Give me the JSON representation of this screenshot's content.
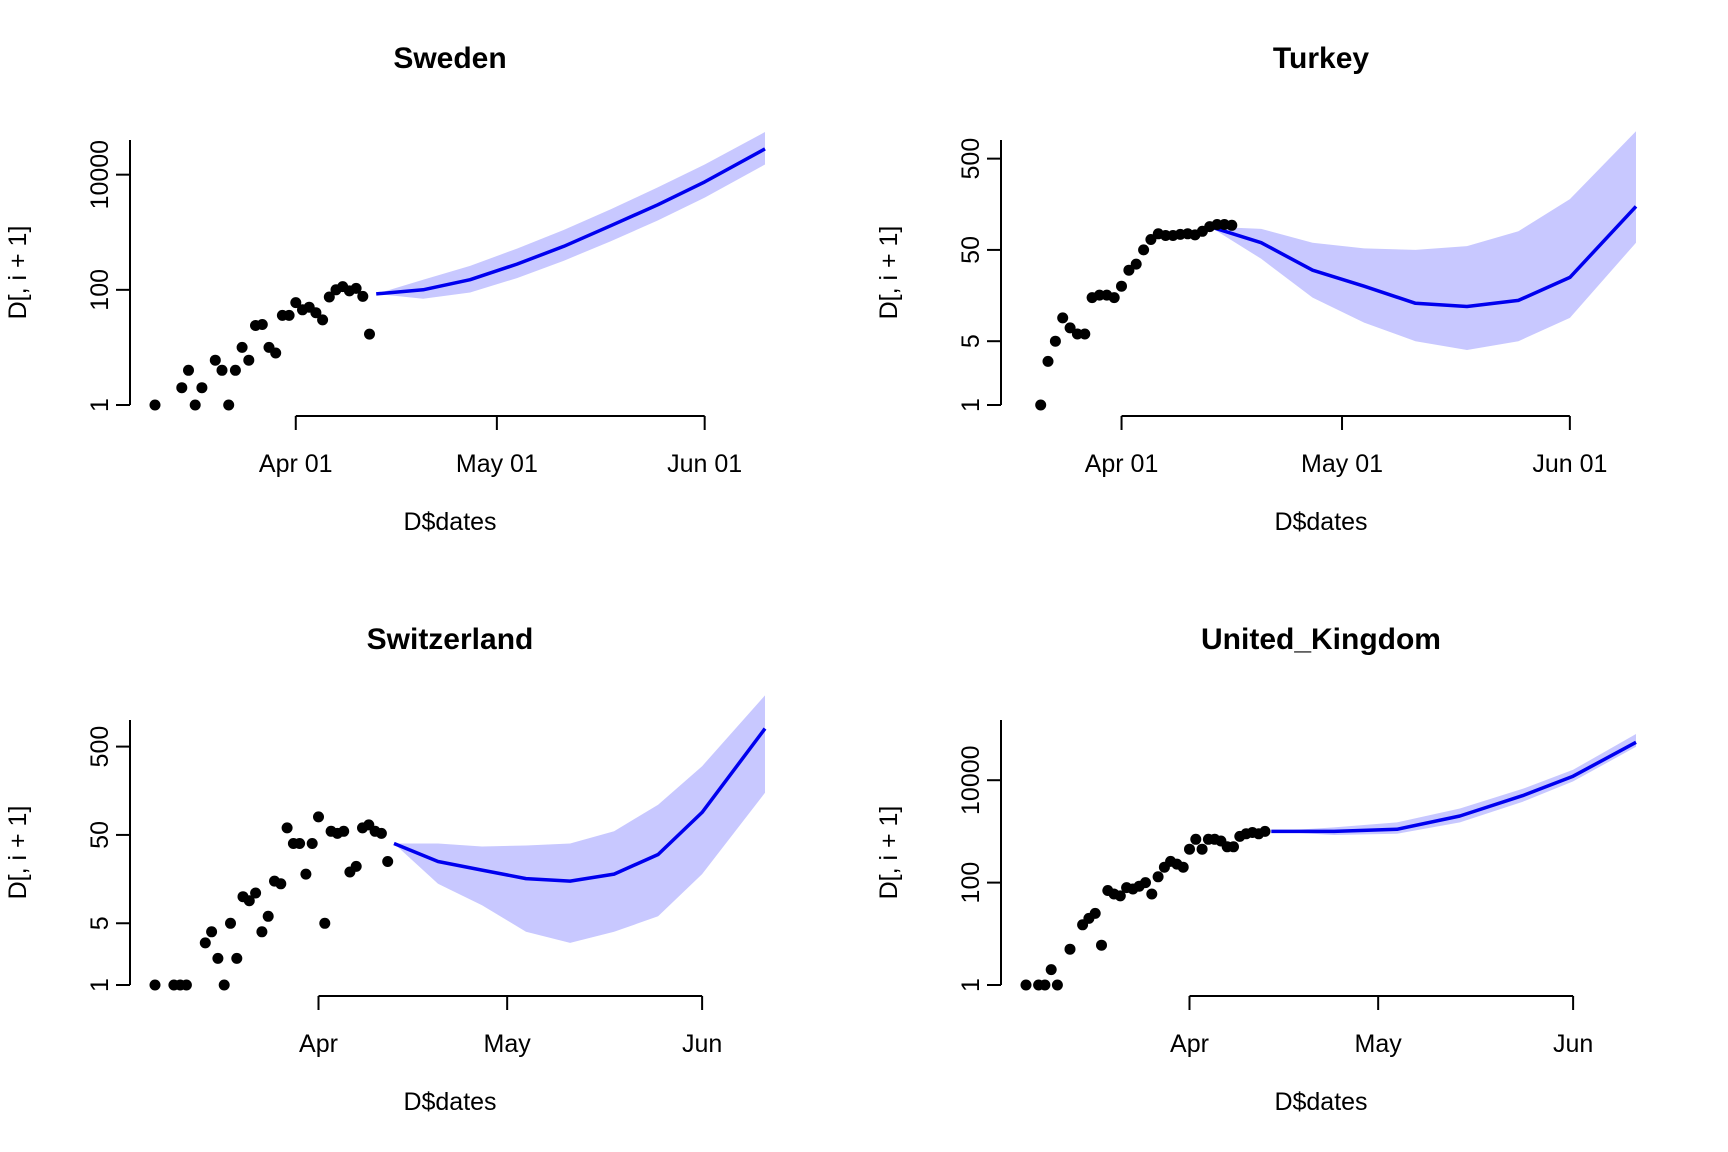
{
  "colors": {
    "points": "#000000",
    "forecast_line": "#0000ee",
    "band_fill": "#c8c8ff",
    "axis": "#000000"
  },
  "chart_data": [
    {
      "type": "scatter",
      "title": "Sweden",
      "xlabel": "D$dates",
      "ylabel": "D[, i + 1]",
      "y_scale": "log",
      "y_ticks": [
        "1",
        "100",
        "10000"
      ],
      "x_ticks": [
        {
          "date": "2020-04-01",
          "label": "Apr 01"
        },
        {
          "date": "2020-05-01",
          "label": "May 01"
        },
        {
          "date": "2020-06-01",
          "label": "Jun 01"
        }
      ],
      "xlim": [
        "2020-03-11",
        "2020-06-10"
      ],
      "ylim": [
        1,
        40000
      ],
      "observed": [
        [
          "2020-03-11",
          1
        ],
        [
          "2020-03-15",
          2
        ],
        [
          "2020-03-16",
          4
        ],
        [
          "2020-03-17",
          1
        ],
        [
          "2020-03-18",
          2
        ],
        [
          "2020-03-20",
          6
        ],
        [
          "2020-03-21",
          4
        ],
        [
          "2020-03-22",
          1
        ],
        [
          "2020-03-23",
          4
        ],
        [
          "2020-03-24",
          10
        ],
        [
          "2020-03-25",
          6
        ],
        [
          "2020-03-26",
          24
        ],
        [
          "2020-03-27",
          25
        ],
        [
          "2020-03-28",
          10
        ],
        [
          "2020-03-29",
          8
        ],
        [
          "2020-03-30",
          36
        ],
        [
          "2020-03-31",
          36
        ],
        [
          "2020-04-01",
          60
        ],
        [
          "2020-04-02",
          45
        ],
        [
          "2020-04-03",
          50
        ],
        [
          "2020-04-04",
          40
        ],
        [
          "2020-04-05",
          30
        ],
        [
          "2020-04-06",
          75
        ],
        [
          "2020-04-07",
          100
        ],
        [
          "2020-04-08",
          114
        ],
        [
          "2020-04-09",
          96
        ],
        [
          "2020-04-10",
          106
        ],
        [
          "2020-04-11",
          77
        ],
        [
          "2020-04-12",
          17
        ]
      ],
      "forecast": [
        [
          "2020-04-13",
          85,
          85,
          85
        ],
        [
          "2020-04-20",
          100,
          70,
          150
        ],
        [
          "2020-04-27",
          150,
          90,
          260
        ],
        [
          "2020-05-04",
          280,
          160,
          520
        ],
        [
          "2020-05-11",
          570,
          320,
          1100
        ],
        [
          "2020-05-18",
          1300,
          700,
          2500
        ],
        [
          "2020-05-25",
          3000,
          1600,
          6000
        ],
        [
          "2020-06-01",
          7500,
          4000,
          15000
        ],
        [
          "2020-06-10",
          28000,
          15000,
          55000
        ]
      ]
    },
    {
      "type": "scatter",
      "title": "Turkey",
      "xlabel": "D$dates",
      "ylabel": "D[, i + 1]",
      "y_scale": "log",
      "y_ticks": [
        "1",
        "5",
        "50",
        "500"
      ],
      "x_ticks": [
        {
          "date": "2020-04-01",
          "label": "Apr 01"
        },
        {
          "date": "2020-05-01",
          "label": "May 01"
        },
        {
          "date": "2020-06-01",
          "label": "Jun 01"
        }
      ],
      "xlim": [
        "2020-03-19",
        "2020-06-10"
      ],
      "ylim": [
        1,
        800
      ],
      "observed": [
        [
          "2020-03-21",
          1
        ],
        [
          "2020-03-22",
          3
        ],
        [
          "2020-03-23",
          5
        ],
        [
          "2020-03-24",
          9
        ],
        [
          "2020-03-25",
          7
        ],
        [
          "2020-03-26",
          6
        ],
        [
          "2020-03-27",
          6
        ],
        [
          "2020-03-28",
          15
        ],
        [
          "2020-03-29",
          16
        ],
        [
          "2020-03-30",
          16
        ],
        [
          "2020-03-31",
          15
        ],
        [
          "2020-04-01",
          20
        ],
        [
          "2020-04-02",
          30
        ],
        [
          "2020-04-03",
          35
        ],
        [
          "2020-04-04",
          50
        ],
        [
          "2020-04-05",
          65
        ],
        [
          "2020-04-06",
          75
        ],
        [
          "2020-04-07",
          72
        ],
        [
          "2020-04-08",
          72
        ],
        [
          "2020-04-09",
          74
        ],
        [
          "2020-04-10",
          75
        ],
        [
          "2020-04-11",
          73
        ],
        [
          "2020-04-12",
          80
        ],
        [
          "2020-04-13",
          90
        ],
        [
          "2020-04-14",
          95
        ],
        [
          "2020-04-15",
          95
        ],
        [
          "2020-04-16",
          93
        ]
      ],
      "forecast": [
        [
          "2020-04-13",
          90,
          90,
          90
        ],
        [
          "2020-04-20",
          60,
          40,
          85
        ],
        [
          "2020-04-27",
          30,
          15,
          60
        ],
        [
          "2020-05-04",
          20,
          8,
          52
        ],
        [
          "2020-05-11",
          13,
          5,
          50
        ],
        [
          "2020-05-18",
          12,
          4,
          55
        ],
        [
          "2020-05-25",
          14,
          5,
          80
        ],
        [
          "2020-06-01",
          25,
          9,
          180
        ],
        [
          "2020-06-10",
          150,
          60,
          1000
        ]
      ]
    },
    {
      "type": "scatter",
      "title": "Switzerland",
      "xlabel": "D$dates",
      "ylabel": "D[, i + 1]",
      "y_scale": "log",
      "y_ticks": [
        "1",
        "5",
        "50",
        "500"
      ],
      "x_ticks": [
        {
          "date": "2020-04-01",
          "label": "Apr"
        },
        {
          "date": "2020-05-01",
          "label": "May"
        },
        {
          "date": "2020-06-01",
          "label": "Jun"
        }
      ],
      "xlim": [
        "2020-03-06",
        "2020-06-11"
      ],
      "ylim": [
        1,
        1000
      ],
      "observed": [
        [
          "2020-03-06",
          1
        ],
        [
          "2020-03-09",
          1
        ],
        [
          "2020-03-10",
          1
        ],
        [
          "2020-03-11",
          1
        ],
        [
          "2020-03-14",
          3
        ],
        [
          "2020-03-15",
          4
        ],
        [
          "2020-03-16",
          2
        ],
        [
          "2020-03-17",
          1
        ],
        [
          "2020-03-18",
          5
        ],
        [
          "2020-03-19",
          2
        ],
        [
          "2020-03-20",
          10
        ],
        [
          "2020-03-21",
          9
        ],
        [
          "2020-03-22",
          11
        ],
        [
          "2020-03-23",
          4
        ],
        [
          "2020-03-24",
          6
        ],
        [
          "2020-03-25",
          15
        ],
        [
          "2020-03-26",
          14
        ],
        [
          "2020-03-27",
          60
        ],
        [
          "2020-03-28",
          40
        ],
        [
          "2020-03-29",
          40
        ],
        [
          "2020-03-30",
          18
        ],
        [
          "2020-03-31",
          40
        ],
        [
          "2020-04-01",
          80
        ],
        [
          "2020-04-02",
          5
        ],
        [
          "2020-04-03",
          55
        ],
        [
          "2020-04-04",
          52
        ],
        [
          "2020-04-05",
          55
        ],
        [
          "2020-04-06",
          19
        ],
        [
          "2020-04-07",
          22
        ],
        [
          "2020-04-08",
          60
        ],
        [
          "2020-04-09",
          65
        ],
        [
          "2020-04-10",
          55
        ],
        [
          "2020-04-11",
          52
        ],
        [
          "2020-04-12",
          25
        ]
      ],
      "forecast": [
        [
          "2020-04-13",
          40,
          40,
          40
        ],
        [
          "2020-04-20",
          25,
          14,
          40
        ],
        [
          "2020-04-27",
          20,
          8,
          37
        ],
        [
          "2020-05-04",
          16,
          4,
          38
        ],
        [
          "2020-05-11",
          15,
          3,
          40
        ],
        [
          "2020-05-18",
          18,
          4,
          55
        ],
        [
          "2020-05-25",
          30,
          6,
          110
        ],
        [
          "2020-06-01",
          90,
          18,
          300
        ],
        [
          "2020-06-11",
          800,
          150,
          1900
        ]
      ]
    },
    {
      "type": "scatter",
      "title": "United_Kingdom",
      "xlabel": "D$dates",
      "ylabel": "D[, i + 1]",
      "y_scale": "log",
      "y_ticks": [
        "1",
        "100",
        "10000"
      ],
      "x_ticks": [
        {
          "date": "2020-04-01",
          "label": "Apr"
        },
        {
          "date": "2020-05-01",
          "label": "May"
        },
        {
          "date": "2020-06-01",
          "label": "Jun"
        }
      ],
      "xlim": [
        "2020-03-06",
        "2020-06-11"
      ],
      "ylim": [
        1,
        150000
      ],
      "observed": [
        [
          "2020-03-06",
          1
        ],
        [
          "2020-03-08",
          1
        ],
        [
          "2020-03-09",
          1
        ],
        [
          "2020-03-10",
          2
        ],
        [
          "2020-03-11",
          1
        ],
        [
          "2020-03-13",
          5
        ],
        [
          "2020-03-15",
          15
        ],
        [
          "2020-03-16",
          20
        ],
        [
          "2020-03-17",
          25
        ],
        [
          "2020-03-18",
          6
        ],
        [
          "2020-03-19",
          70
        ],
        [
          "2020-03-20",
          60
        ],
        [
          "2020-03-21",
          55
        ],
        [
          "2020-03-22",
          80
        ],
        [
          "2020-03-23",
          75
        ],
        [
          "2020-03-24",
          85
        ],
        [
          "2020-03-25",
          100
        ],
        [
          "2020-03-26",
          60
        ],
        [
          "2020-03-27",
          130
        ],
        [
          "2020-03-28",
          200
        ],
        [
          "2020-03-29",
          260
        ],
        [
          "2020-03-30",
          230
        ],
        [
          "2020-03-31",
          200
        ],
        [
          "2020-04-01",
          450
        ],
        [
          "2020-04-02",
          700
        ],
        [
          "2020-04-03",
          450
        ],
        [
          "2020-04-04",
          700
        ],
        [
          "2020-04-05",
          700
        ],
        [
          "2020-04-06",
          650
        ],
        [
          "2020-04-07",
          500
        ],
        [
          "2020-04-08",
          500
        ],
        [
          "2020-04-09",
          800
        ],
        [
          "2020-04-10",
          900
        ],
        [
          "2020-04-11",
          950
        ],
        [
          "2020-04-12",
          900
        ],
        [
          "2020-04-13",
          1000
        ]
      ],
      "forecast": [
        [
          "2020-04-14",
          1000,
          1000,
          1000
        ],
        [
          "2020-04-24",
          1000,
          850,
          1200
        ],
        [
          "2020-05-04",
          1100,
          900,
          1500
        ],
        [
          "2020-05-14",
          2000,
          1500,
          2800
        ],
        [
          "2020-05-24",
          5000,
          3800,
          6800
        ],
        [
          "2020-06-01",
          12000,
          9500,
          16000
        ],
        [
          "2020-06-11",
          55000,
          45000,
          80000
        ]
      ]
    }
  ]
}
